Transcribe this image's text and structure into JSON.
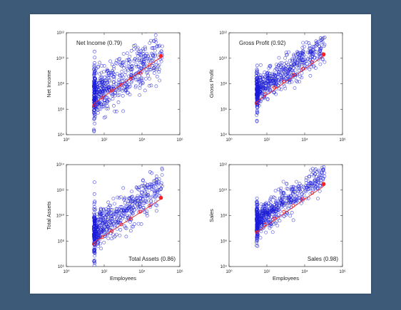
{
  "colors": {
    "background": "#3d5a78",
    "points": "#1b1bd8",
    "fit_line": "#e23030",
    "bin_means": "#ff2020"
  },
  "chart_data": [
    {
      "type": "scatter",
      "annotation": "Net Income (0.79)",
      "annotation_position": "top-left",
      "xlabel": "",
      "ylabel": "Net Income",
      "xscale": "log",
      "yscale": "log",
      "xlim": [
        1,
        1000000
      ],
      "ylim": [
        10000,
        1000000000000
      ],
      "xticks": [
        1,
        100,
        10000,
        1000000
      ],
      "xtick_labels": [
        "10⁰",
        "10²",
        "10⁴",
        "10⁶"
      ],
      "yticks": [
        10000,
        1000000,
        100000000,
        10000000000,
        1000000000000
      ],
      "ytick_labels": [
        "10⁴",
        "10⁶",
        "10⁸",
        "10¹⁰",
        "10¹²"
      ],
      "grid": false,
      "bin_means": {
        "x": [
          30,
          80,
          250,
          800,
          2500,
          8000,
          25000,
          100000
        ],
        "y": [
          2000000,
          8000000,
          30000000,
          80000000,
          250000000,
          700000000,
          3000000000,
          15000000000
        ]
      },
      "fit_line": {
        "x": [
          30,
          100000
        ],
        "y": [
          3000000,
          12000000000
        ]
      },
      "cloud": {
        "x_min": 30,
        "x_max": 120000,
        "intercept_log10": 5.6,
        "slope": 0.95,
        "spread_log10": 0.9,
        "stack_x": 30
      }
    },
    {
      "type": "scatter",
      "annotation": "Gross Profit (0.92)",
      "annotation_position": "top-left",
      "xlabel": "",
      "ylabel": "Gross Profit",
      "xscale": "log",
      "yscale": "log",
      "xlim": [
        1,
        1000000
      ],
      "ylim": [
        10000,
        1000000000000
      ],
      "xticks": [
        1,
        100,
        10000,
        1000000
      ],
      "xtick_labels": [
        "10⁰",
        "10²",
        "10⁴",
        "10⁶"
      ],
      "yticks": [
        10000,
        1000000,
        100000000,
        10000000000,
        1000000000000
      ],
      "ytick_labels": [
        "10⁴",
        "10⁶",
        "10⁸",
        "10¹⁰",
        "10¹²"
      ],
      "grid": false,
      "bin_means": {
        "x": [
          30,
          80,
          250,
          800,
          2500,
          8000,
          25000,
          100000
        ],
        "y": [
          3000000,
          15000000,
          50000000,
          150000000,
          500000000,
          1500000000,
          5000000000,
          20000000000
        ]
      },
      "fit_line": {
        "x": [
          30,
          100000
        ],
        "y": [
          4000000,
          15000000000
        ]
      },
      "cloud": {
        "x_min": 30,
        "x_max": 120000,
        "intercept_log10": 5.9,
        "slope": 1.0,
        "spread_log10": 0.6,
        "stack_x": 30
      }
    },
    {
      "type": "scatter",
      "annotation": "Total Assets (0.86)",
      "annotation_position": "bottom-right",
      "xlabel": "Employees",
      "ylabel": "Total Assets",
      "xscale": "log",
      "yscale": "log",
      "xlim": [
        1,
        1000000
      ],
      "ylim": [
        1000000,
        100000000000000
      ],
      "xticks": [
        1,
        100,
        10000,
        1000000
      ],
      "xtick_labels": [
        "10⁰",
        "10²",
        "10⁴",
        "10⁶"
      ],
      "yticks": [
        1000000,
        100000000,
        10000000000,
        1000000000000,
        100000000000000
      ],
      "ytick_labels": [
        "10⁶",
        "10⁸",
        "10¹⁰",
        "10¹²",
        "10¹⁴"
      ],
      "grid": false,
      "bin_means": {
        "x": [
          30,
          80,
          250,
          800,
          2500,
          8000,
          25000,
          100000
        ],
        "y": [
          60000000,
          200000000,
          600000000,
          2000000000,
          6000000000,
          20000000000,
          60000000000,
          250000000000
        ]
      },
      "fit_line": {
        "x": [
          30,
          100000
        ],
        "y": [
          80000000,
          200000000000
        ]
      },
      "cloud": {
        "x_min": 30,
        "x_max": 120000,
        "intercept_log10": 7.4,
        "slope": 0.95,
        "spread_log10": 0.7,
        "stack_x": 30
      }
    },
    {
      "type": "scatter",
      "annotation": "Sales (0.98)",
      "annotation_position": "bottom-right",
      "xlabel": "Employees",
      "ylabel": "Sales",
      "xscale": "log",
      "yscale": "log",
      "xlim": [
        1,
        1000000
      ],
      "ylim": [
        10000,
        1000000000000
      ],
      "xticks": [
        1,
        100,
        10000,
        1000000
      ],
      "xtick_labels": [
        "10⁰",
        "10²",
        "10⁴",
        "10⁶"
      ],
      "yticks": [
        10000,
        1000000,
        100000000,
        10000000000,
        1000000000000
      ],
      "ytick_labels": [
        "10⁴",
        "10⁶",
        "10⁸",
        "10¹⁰",
        "10¹²"
      ],
      "grid": false,
      "bin_means": {
        "x": [
          30,
          80,
          250,
          800,
          2500,
          8000,
          25000,
          100000
        ],
        "y": [
          5000000,
          20000000,
          60000000,
          200000000,
          600000000,
          2000000000,
          6000000000,
          30000000000
        ]
      },
      "fit_line": {
        "x": [
          30,
          100000
        ],
        "y": [
          5000000,
          20000000000
        ]
      },
      "cloud": {
        "x_min": 30,
        "x_max": 120000,
        "intercept_log10": 6.0,
        "slope": 1.02,
        "spread_log10": 0.55,
        "stack_x": 30
      }
    }
  ]
}
